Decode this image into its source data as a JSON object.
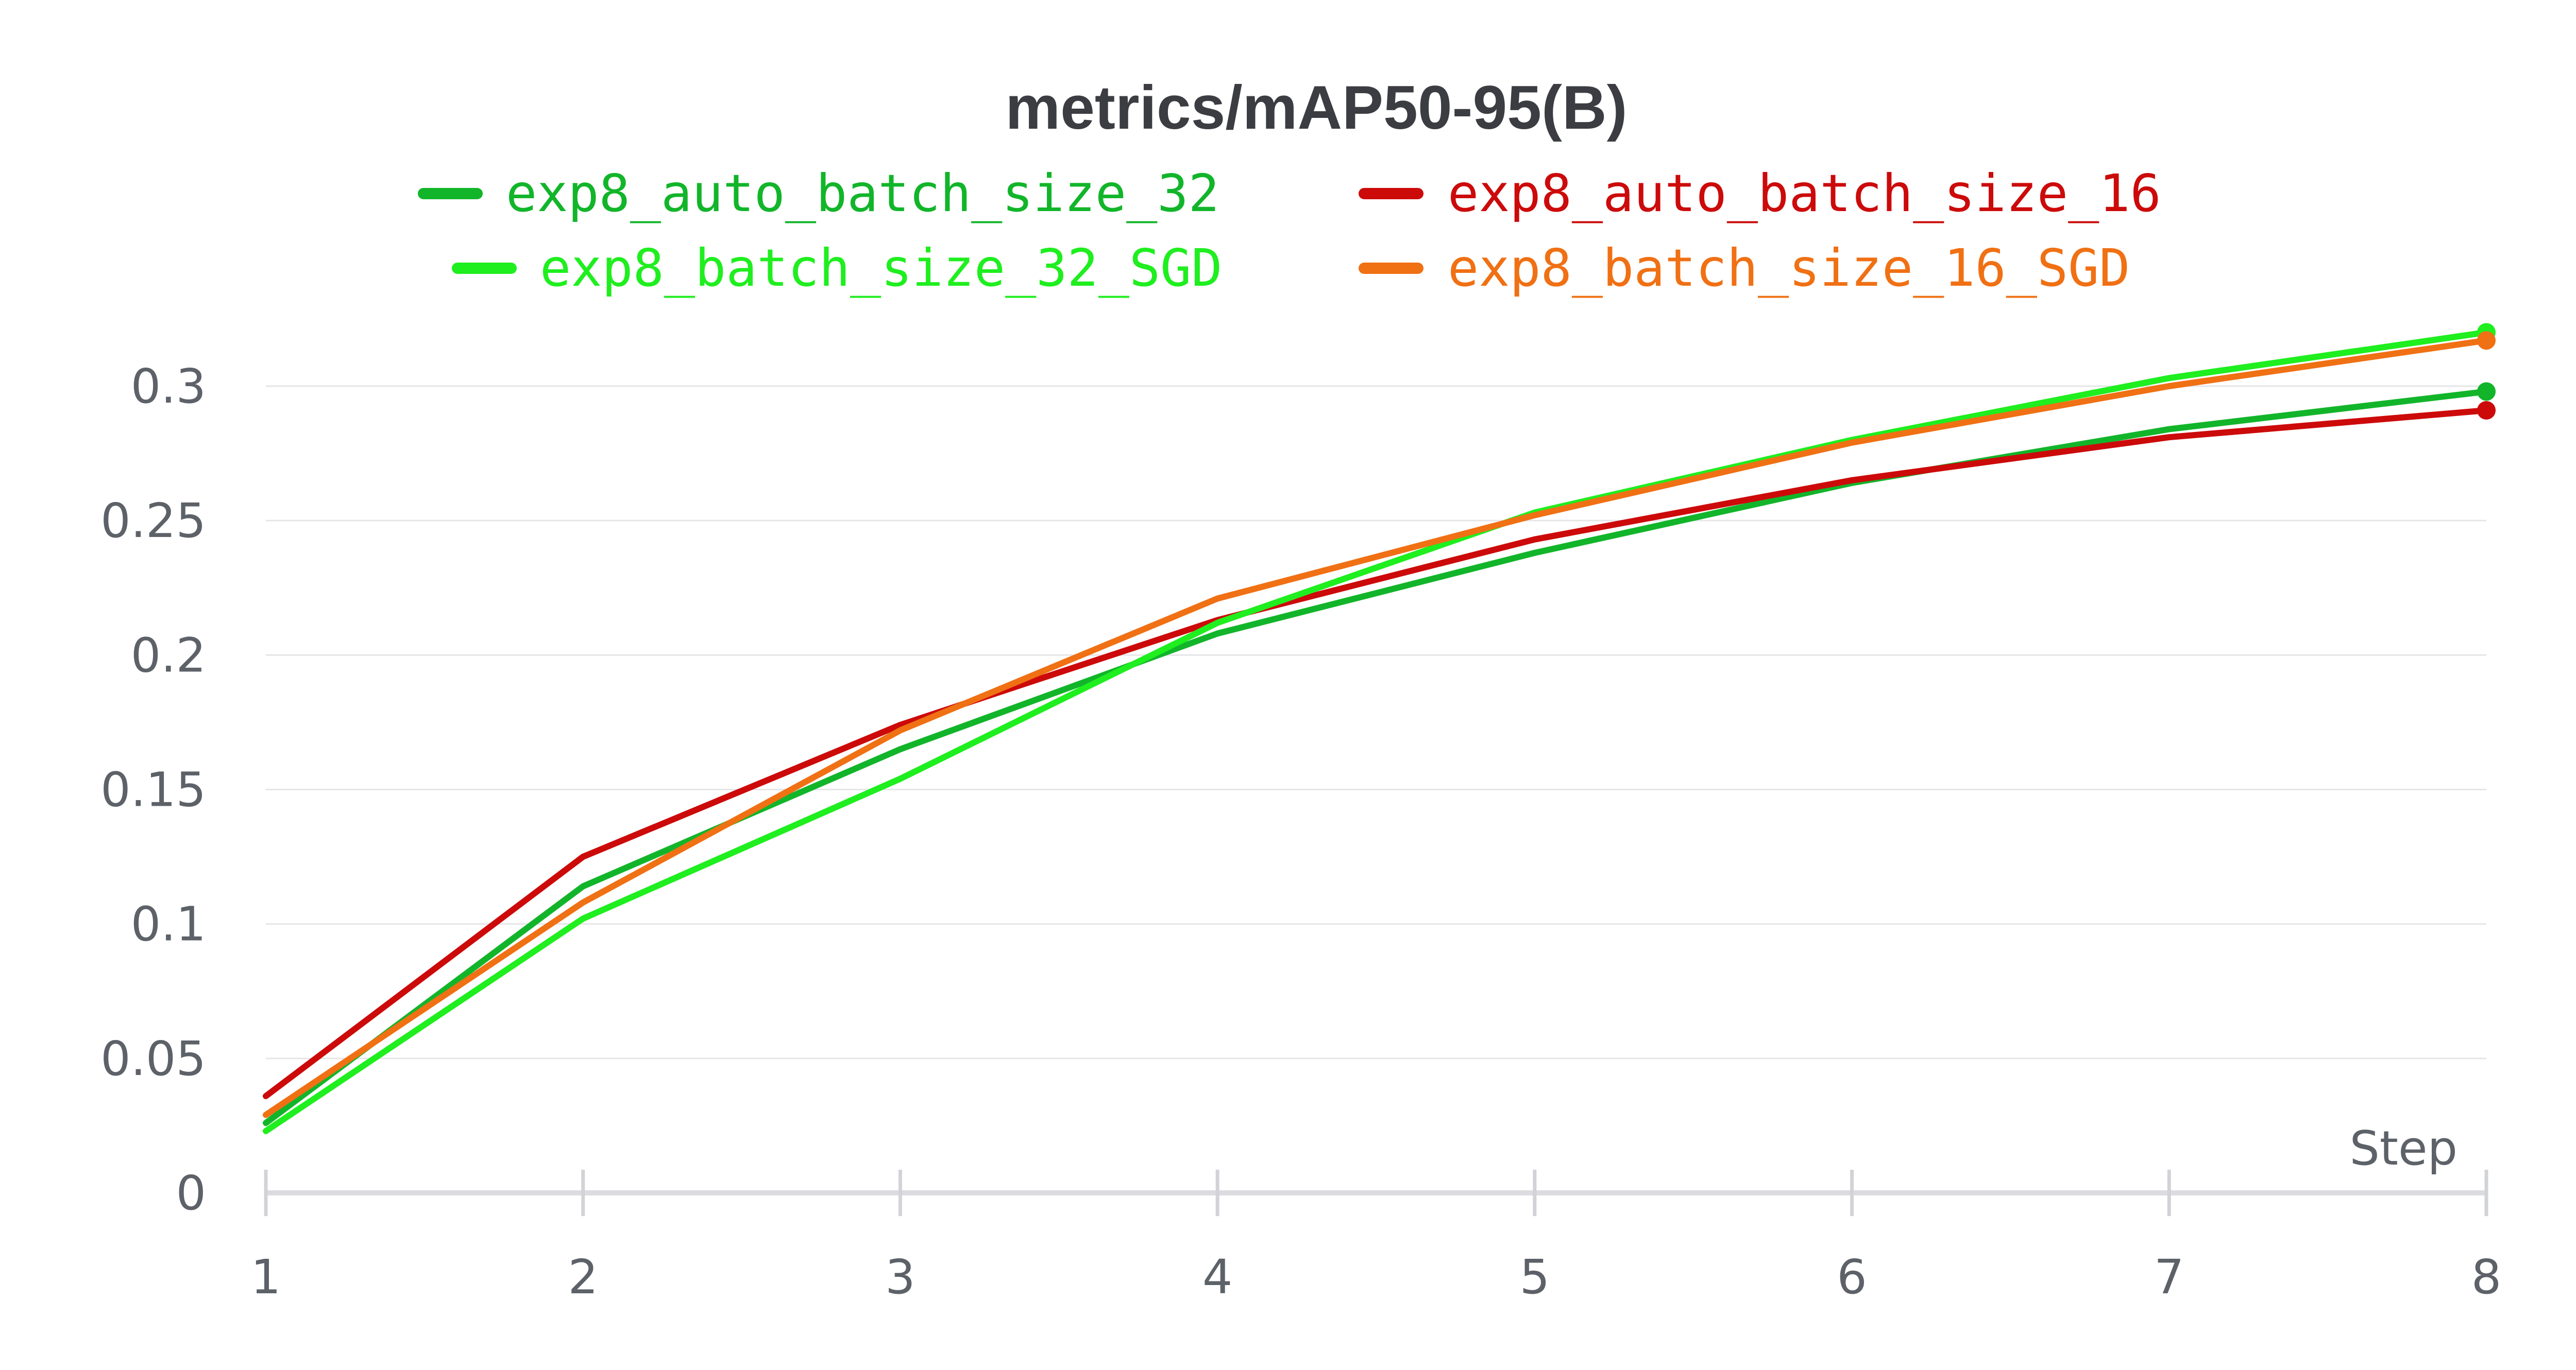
{
  "chart_data": {
    "type": "line",
    "title": "metrics/mAP50-95(B)",
    "xlabel": "Step",
    "ylabel": "",
    "x": [
      1,
      2,
      3,
      4,
      5,
      6,
      7,
      8
    ],
    "xlim": [
      1,
      8
    ],
    "ylim": [
      0,
      0.32
    ],
    "x_ticks": [
      "1",
      "2",
      "3",
      "4",
      "5",
      "6",
      "7",
      "8"
    ],
    "y_ticks": [
      "0",
      "0.05",
      "0.1",
      "0.15",
      "0.2",
      "0.25",
      "0.3"
    ],
    "y_tick_values": [
      0,
      0.05,
      0.1,
      0.15,
      0.2,
      0.25,
      0.3
    ],
    "grid": true,
    "legend_position": "top",
    "series": [
      {
        "name": "exp8_auto_batch_size_32",
        "color": "#12b52a",
        "values": [
          0.026,
          0.114,
          0.165,
          0.208,
          0.238,
          0.264,
          0.284,
          0.298
        ]
      },
      {
        "name": "exp8_auto_batch_size_16",
        "color": "#cc0a0a",
        "values": [
          0.036,
          0.125,
          0.174,
          0.213,
          0.243,
          0.265,
          0.281,
          0.291
        ]
      },
      {
        "name": "exp8_batch_size_32_SGD",
        "color": "#1fee1f",
        "values": [
          0.023,
          0.102,
          0.154,
          0.212,
          0.253,
          0.28,
          0.303,
          0.32
        ]
      },
      {
        "name": "exp8_batch_size_16_SGD",
        "color": "#f07014",
        "values": [
          0.029,
          0.108,
          0.172,
          0.221,
          0.252,
          0.279,
          0.3,
          0.317
        ]
      }
    ]
  }
}
